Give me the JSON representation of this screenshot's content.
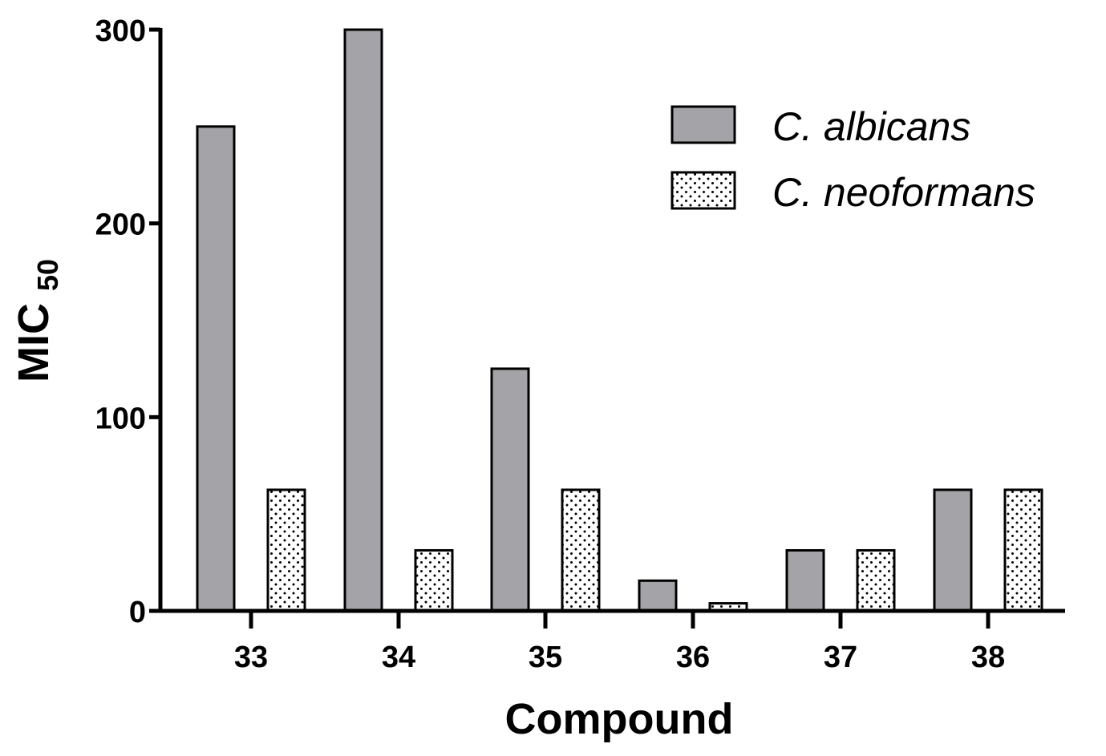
{
  "chart_data": {
    "type": "bar",
    "categories": [
      "33",
      "34",
      "35",
      "36",
      "37",
      "38"
    ],
    "series": [
      {
        "name": "C. albicans",
        "values": [
          250,
          300,
          125,
          15.6,
          31.25,
          62.5
        ],
        "color": "#a4a4a8",
        "pattern": "solid"
      },
      {
        "name": "C. neoformans",
        "values": [
          62.5,
          31.25,
          62.5,
          3.9,
          31.25,
          62.5
        ],
        "color": "#ffffff",
        "pattern": "dots"
      }
    ],
    "xlabel": "Compound",
    "ylabel": "MIC",
    "ylabel_subscript": "50",
    "ylim": [
      0,
      300
    ],
    "yticks": [
      0,
      100,
      200,
      300
    ],
    "ytick_labels": [
      "0",
      "100",
      "200",
      "300"
    ],
    "legend_position": "top-right",
    "grid": false
  }
}
